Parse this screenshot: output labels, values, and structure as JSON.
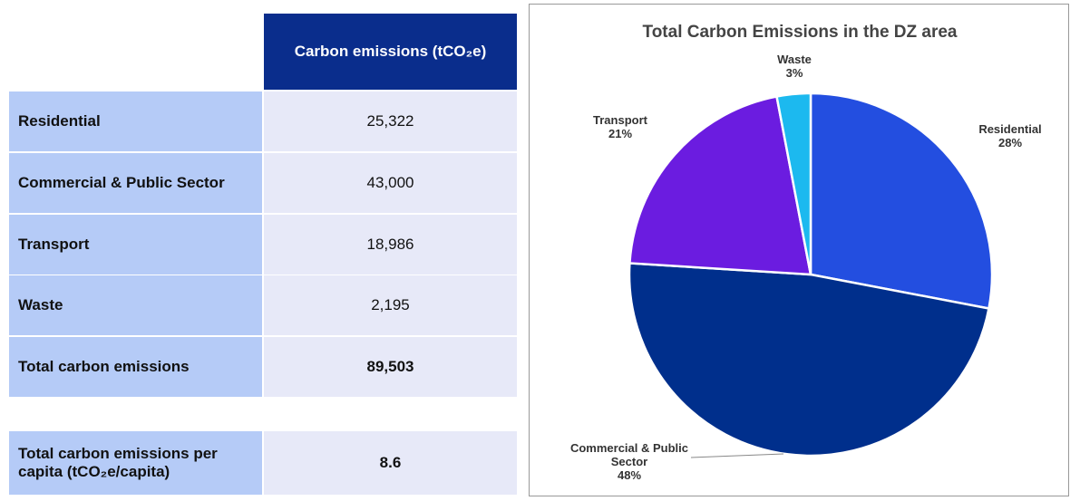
{
  "table": {
    "header": "Carbon emissions (tCO₂e)",
    "rows": [
      [
        "Residential",
        "25,322"
      ],
      [
        "Commercial & Public Sector",
        "43,000"
      ],
      [
        "Transport",
        "18,986"
      ],
      [
        "Waste",
        "2,195"
      ],
      [
        "Total carbon emissions",
        "89,503"
      ]
    ],
    "per_capita": [
      "Total carbon emissions per capita (tCO₂e/capita)",
      "8.6"
    ]
  },
  "chart_data": {
    "type": "pie",
    "title": "Total Carbon Emissions in the DZ area",
    "categories": [
      "Residential",
      "Commercial & Public Sector",
      "Transport",
      "Waste"
    ],
    "values": [
      28,
      48,
      21,
      3
    ],
    "value_labels": [
      "28%",
      "48%",
      "21%",
      "3%"
    ],
    "colors": [
      "#234ee0",
      "#002f8c",
      "#6b1ce0",
      "#1cb9ef"
    ]
  }
}
